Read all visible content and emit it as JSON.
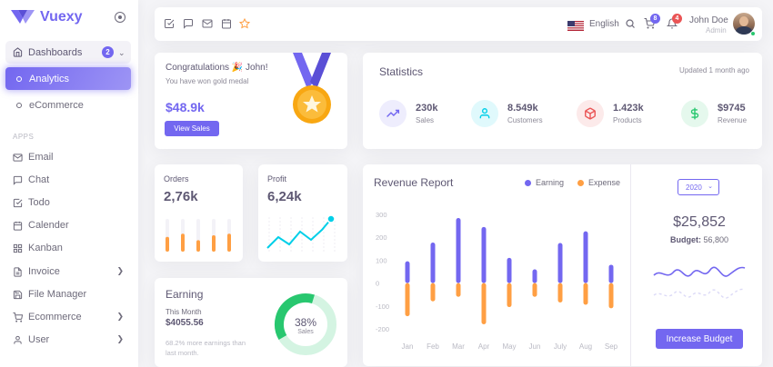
{
  "brand": {
    "name": "Vuexy",
    "logo_icon": "vuexy-logo",
    "color": "#7367f0"
  },
  "sidebar": {
    "dashboards": {
      "label": "Dashboards",
      "badge": "2",
      "icon": "home-icon"
    },
    "analytics": {
      "label": "Analytics"
    },
    "ecommerce_sub": {
      "label": "eCommerce"
    },
    "apps_header": "APPS",
    "items": [
      {
        "label": "Email",
        "icon": "mail-icon",
        "has_chevron": false
      },
      {
        "label": "Chat",
        "icon": "message-square-icon",
        "has_chevron": false
      },
      {
        "label": "Todo",
        "icon": "check-square-icon",
        "has_chevron": false
      },
      {
        "label": "Calender",
        "icon": "calendar-icon",
        "has_chevron": false
      },
      {
        "label": "Kanban",
        "icon": "grid-icon",
        "has_chevron": false
      },
      {
        "label": "Invoice",
        "icon": "file-text-icon",
        "has_chevron": true
      },
      {
        "label": "File Manager",
        "icon": "save-icon",
        "has_chevron": false
      },
      {
        "label": "Ecommerce",
        "icon": "shopping-cart-icon",
        "has_chevron": true
      },
      {
        "label": "User",
        "icon": "user-icon",
        "has_chevron": true
      }
    ]
  },
  "topbar": {
    "language": "English",
    "cart_badge": "8",
    "notification_badge": "4",
    "user_name": "John Doe",
    "user_role": "Admin"
  },
  "congrats": {
    "title": "Congratulations 🎉 John!",
    "subtitle": "You have won gold medal",
    "amount": "$48.9k",
    "button": "View Sales"
  },
  "statistics": {
    "title": "Statistics",
    "updated": "Updated 1 month ago",
    "items": [
      {
        "value": "230k",
        "label": "Sales",
        "icon": "trending-up-icon",
        "color": "#7367f0",
        "bg": "#eeedfd"
      },
      {
        "value": "8.549k",
        "label": "Customers",
        "icon": "user-icon",
        "color": "#00cfe8",
        "bg": "#e0f9fc"
      },
      {
        "value": "1.423k",
        "label": "Products",
        "icon": "box-icon",
        "color": "#ea5455",
        "bg": "#fceaea"
      },
      {
        "value": "$9745",
        "label": "Revenue",
        "icon": "dollar-sign-icon",
        "color": "#28c76f",
        "bg": "#e5f8ed"
      }
    ]
  },
  "orders": {
    "title": "Orders",
    "value": "2,76k",
    "bars": [
      0.45,
      0.55,
      0.35,
      0.5,
      0.55
    ],
    "color": "#ff9f43"
  },
  "profit": {
    "title": "Profit",
    "value": "6,24k",
    "color": "#00cfe8"
  },
  "earning": {
    "title": "Earning",
    "month_label": "This Month",
    "amount": "$4055.56",
    "note_pct": "68.2%",
    "note_text": " more earnings than last month.",
    "percent": "38%",
    "percent_label": "Sales",
    "donut_value": 38
  },
  "revenue": {
    "title": "Revenue Report",
    "legend_earning": "Earning",
    "legend_expense": "Expense",
    "year": "2020",
    "budget_amount": "$25,852",
    "budget_label": "Budget:",
    "budget_value": "56,800",
    "button": "Increase Budget"
  },
  "chart_data": {
    "type": "bar",
    "categories": [
      "Jan",
      "Feb",
      "Mar",
      "Apr",
      "May",
      "Jun",
      "July",
      "Aug",
      "Sep"
    ],
    "series": [
      {
        "name": "Earning",
        "values": [
          95,
          177,
          284,
          245,
          110,
          60,
          175,
          226,
          80
        ],
        "color": "#7367f0"
      },
      {
        "name": "Expense",
        "values": [
          -145,
          -80,
          -60,
          -180,
          -105,
          -60,
          -85,
          -95,
          -110
        ],
        "color": "#ff9f43"
      }
    ],
    "yticks": [
      300,
      200,
      100,
      0,
      -100,
      -200
    ],
    "ylim": [
      -200,
      300
    ]
  }
}
